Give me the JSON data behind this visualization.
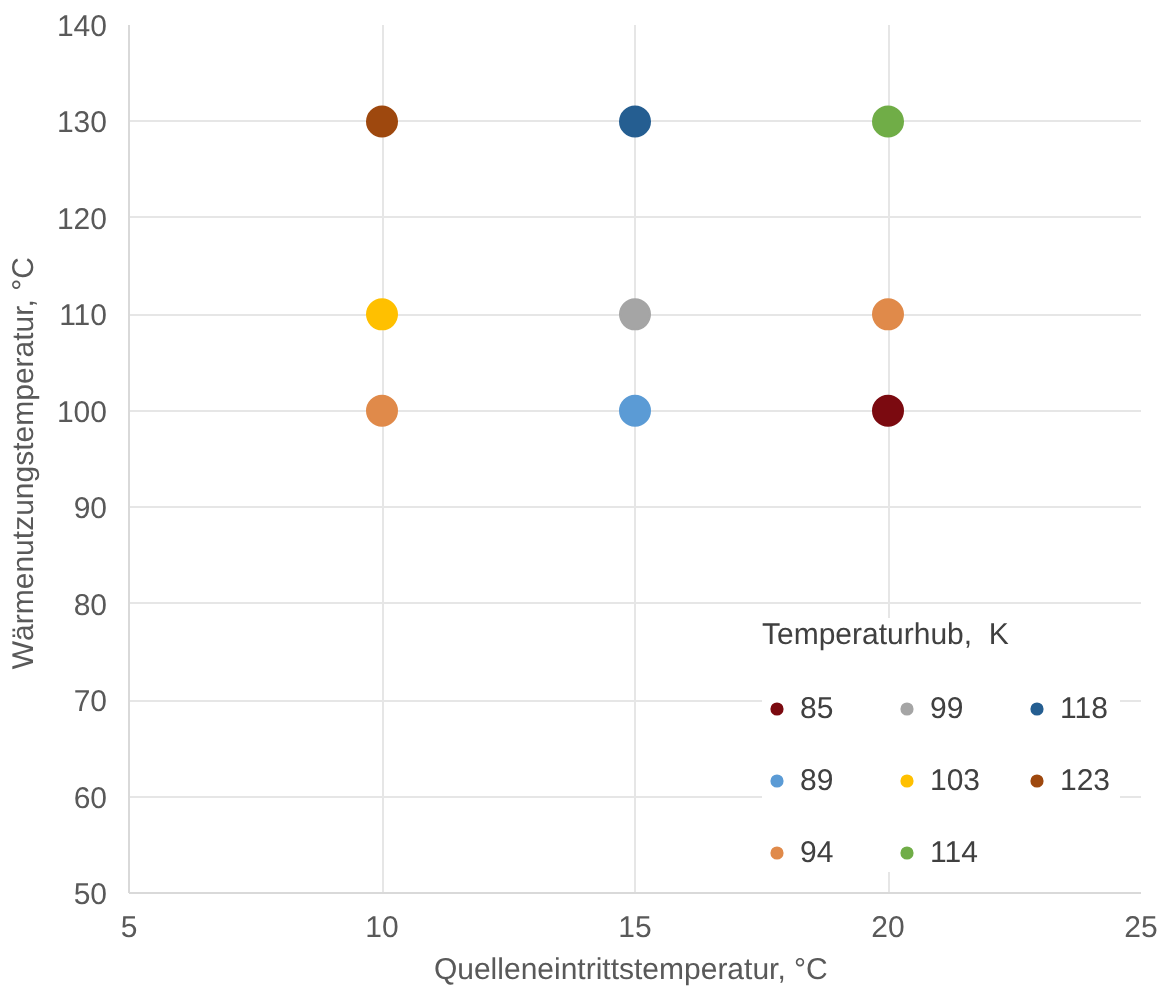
{
  "chart_data": {
    "type": "scatter",
    "xlabel": "Quelleneintrittstemperatur,  °C",
    "ylabel": "Wärmenutzungstemperatur,  °C",
    "legend_title": "Temperaturhub,  K",
    "xlim": [
      5,
      25
    ],
    "xticks": [
      5,
      10,
      15,
      20,
      25
    ],
    "ylim": [
      50,
      140
    ],
    "yticks": [
      50,
      60,
      70,
      80,
      90,
      100,
      110,
      120,
      130,
      140
    ],
    "grid": true,
    "legend": "bottom right",
    "marker": "circle",
    "series": [
      {
        "name": "85",
        "color": "#7b0a10",
        "x": [
          20
        ],
        "values": [
          100
        ]
      },
      {
        "name": "89",
        "color": "#5b9bd5",
        "x": [
          15
        ],
        "values": [
          100
        ]
      },
      {
        "name": "94",
        "color": "#e08a4a",
        "x": [
          10,
          20
        ],
        "values": [
          100,
          110
        ]
      },
      {
        "name": "99",
        "color": "#a5a5a5",
        "x": [
          15
        ],
        "values": [
          110
        ]
      },
      {
        "name": "103",
        "color": "#ffc000",
        "x": [
          10
        ],
        "values": [
          110
        ]
      },
      {
        "name": "114",
        "color": "#70ad47",
        "x": [
          20
        ],
        "values": [
          130
        ]
      },
      {
        "name": "118",
        "color": "#255e91",
        "x": [
          15
        ],
        "values": [
          130
        ]
      },
      {
        "name": "123",
        "color": "#9e480e",
        "x": [
          10
        ],
        "values": [
          130
        ]
      }
    ]
  }
}
